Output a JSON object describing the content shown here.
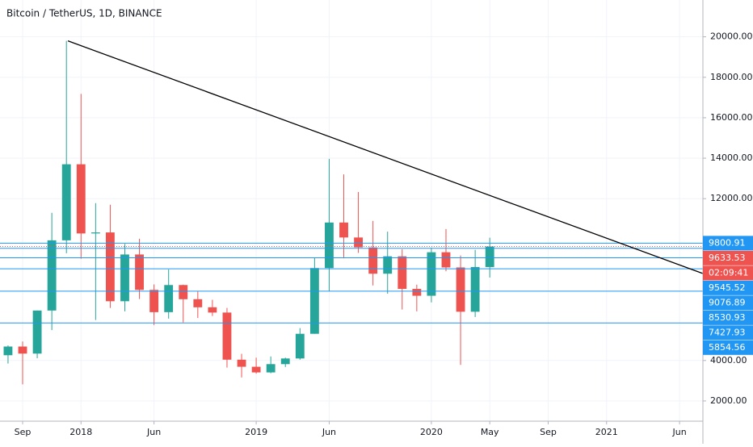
{
  "chart_data": {
    "type": "candlestick",
    "title": "Bitcoin / TetherUS, 1D, BINANCE",
    "categories": [
      null,
      null,
      null,
      null,
      null,
      null,
      null,
      null,
      null,
      null,
      null,
      null,
      null,
      null,
      null,
      null,
      null,
      null,
      null,
      null,
      null,
      null,
      null,
      null,
      null,
      null,
      null,
      null,
      null,
      null,
      null,
      null,
      null,
      null
    ],
    "open": [
      4260,
      4690,
      4340,
      6470,
      9940,
      13700,
      10280,
      10330,
      6930,
      9240,
      7490,
      6390,
      7730,
      7030,
      6630,
      6370,
      4040,
      3690,
      3410,
      3820,
      4100,
      5320,
      8570,
      10820,
      10080,
      9590,
      8290,
      9150,
      7540,
      7200,
      9350,
      8600,
      6410,
      8620
    ],
    "high": [
      4745,
      4940,
      6470,
      11300,
      19800,
      17180,
      11780,
      11700,
      9760,
      10020,
      7760,
      8500,
      7750,
      7410,
      7000,
      6600,
      4330,
      4140,
      4200,
      4140,
      5600,
      9070,
      13970,
      13200,
      12330,
      10900,
      10370,
      9500,
      7750,
      9580,
      10500,
      9190,
      9470,
      10070
    ],
    "low": [
      3850,
      2820,
      4110,
      5500,
      9300,
      9030,
      6000,
      6600,
      6430,
      7040,
      5750,
      6070,
      5880,
      6100,
      6200,
      3650,
      3160,
      3350,
      3370,
      3680,
      4040,
      5320,
      7440,
      9050,
      9320,
      7710,
      7300,
      6520,
      6430,
      6870,
      8410,
      3780,
      6150,
      8100
    ],
    "close": [
      4690,
      4340,
      6470,
      9940,
      13700,
      10280,
      10330,
      6930,
      9240,
      7490,
      6390,
      7730,
      7030,
      6630,
      6370,
      4040,
      3690,
      3410,
      3820,
      4100,
      5320,
      8570,
      10820,
      10080,
      9590,
      8290,
      9150,
      7540,
      7200,
      9350,
      8600,
      6410,
      8620,
      9633.53
    ],
    "up_color": "#26a69a",
    "down_color": "#ef5350",
    "xlim": [
      -0.55,
      47.6
    ],
    "xticks": [
      {
        "value": 1,
        "label": "Sep"
      },
      {
        "value": 5,
        "label": "2018"
      },
      {
        "value": 10,
        "label": "Jun"
      },
      {
        "value": 17,
        "label": "2019"
      },
      {
        "value": 22,
        "label": "Jun"
      },
      {
        "value": 29,
        "label": "2020"
      },
      {
        "value": 33,
        "label": "May"
      },
      {
        "value": 37,
        "label": "Sep"
      },
      {
        "value": 41,
        "label": "2021"
      },
      {
        "value": 46,
        "label": "Jun"
      }
    ],
    "ylim": [
      1000,
      21820
    ],
    "yticks": [
      {
        "value": 2000,
        "label": "2000.00"
      },
      {
        "value": 4000,
        "label": "4000.00"
      },
      {
        "value": 12000,
        "label": "12000.00"
      },
      {
        "value": 14000,
        "label": "14000.00"
      },
      {
        "value": 16000,
        "label": "16000.00"
      },
      {
        "value": 18000,
        "label": "18000.00"
      },
      {
        "value": 20000,
        "label": "20000.00"
      }
    ],
    "grid": true,
    "trendline": {
      "x": [
        4.1,
        47.6
      ],
      "y": [
        19800,
        8300
      ],
      "color": "#000000"
    },
    "levels": [
      9800.91,
      9545.52,
      9076.89,
      8530.93,
      7427.93,
      5854.56
    ],
    "level_color": "#2196f3",
    "last_price": 9633.53,
    "countdown": "02:09:41"
  }
}
